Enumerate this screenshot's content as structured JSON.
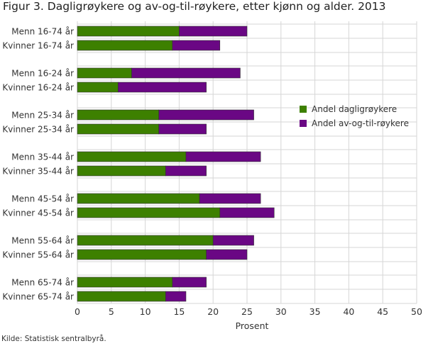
{
  "chart_data": {
    "type": "bar",
    "orientation": "horizontal",
    "stacked": true,
    "title": "Figur  3. Dagligrøykere og av-og-til-røykere, etter kjønn og alder. 2013",
    "xlabel": "Prosent",
    "ylabel": "",
    "xlim": [
      0,
      50
    ],
    "xticks": [
      0,
      5,
      10,
      15,
      20,
      25,
      30,
      35,
      40,
      45,
      50
    ],
    "grid": true,
    "legend_position": "right",
    "categories": [
      "Menn 16-74 år",
      "Kvinner 16-74 år",
      "Menn 16-24 år",
      "Kvinner 16-24 år",
      "Menn 25-34 år",
      "Kvinner 25-34 år",
      "Menn 35-44 år",
      "Kvinner 35-44 år",
      "Menn 45-54 år",
      "Kvinner 45-54 år",
      "Menn 55-64 år",
      "Kvinner 55-64 år",
      "Menn 65-74 år",
      "Kvinner 65-74 år"
    ],
    "series": [
      {
        "name": "Andel dagligrøykere",
        "color": "#3d8000",
        "values": [
          15,
          14,
          8,
          6,
          12,
          12,
          16,
          13,
          18,
          21,
          20,
          19,
          14,
          13
        ]
      },
      {
        "name": "Andel av-og-til-røykere",
        "color": "#6a0784",
        "values": [
          10,
          7,
          16,
          13,
          14,
          7,
          11,
          6,
          9,
          8,
          6,
          6,
          5,
          3
        ]
      }
    ]
  },
  "source": "Kilde: Statistisk sentralbyrå."
}
